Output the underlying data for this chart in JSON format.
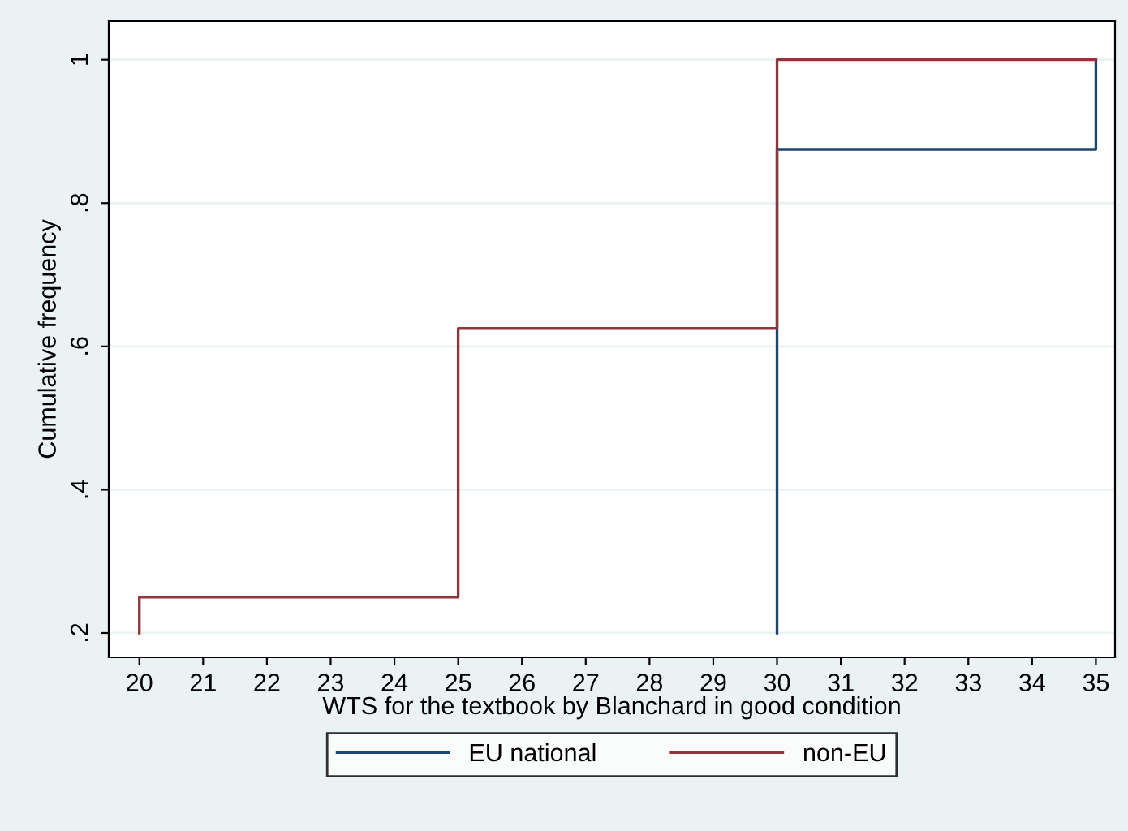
{
  "chart_data": {
    "type": "step",
    "xlabel": "WTS for the textbook by Blanchard in good condition",
    "ylabel": "Cumulative frequency",
    "xlim": [
      19.52,
      35.3
    ],
    "xticks": [
      20,
      21,
      22,
      23,
      24,
      25,
      26,
      27,
      28,
      29,
      30,
      31,
      32,
      33,
      34,
      35
    ],
    "ylim": [
      0.166,
      1.054
    ],
    "yticks": [
      {
        "value": 0.2,
        "label": ".2"
      },
      {
        "value": 0.4,
        "label": ".4"
      },
      {
        "value": 0.6,
        "label": ".6"
      },
      {
        "value": 0.8,
        "label": ".8"
      },
      {
        "value": 1,
        "label": "1"
      }
    ],
    "grid": "y",
    "legend": "bottom",
    "series": [
      {
        "name": "EU national",
        "color": "#1a476f",
        "x": [
          30,
          30,
          35,
          35
        ],
        "values": [
          0.2,
          0.875,
          1,
          1
        ]
      },
      {
        "name": "non-EU",
        "color": "#90353b",
        "x": [
          20,
          20,
          25,
          30,
          35
        ],
        "values": [
          0.2,
          0.25,
          0.625,
          1,
          1
        ]
      }
    ]
  }
}
